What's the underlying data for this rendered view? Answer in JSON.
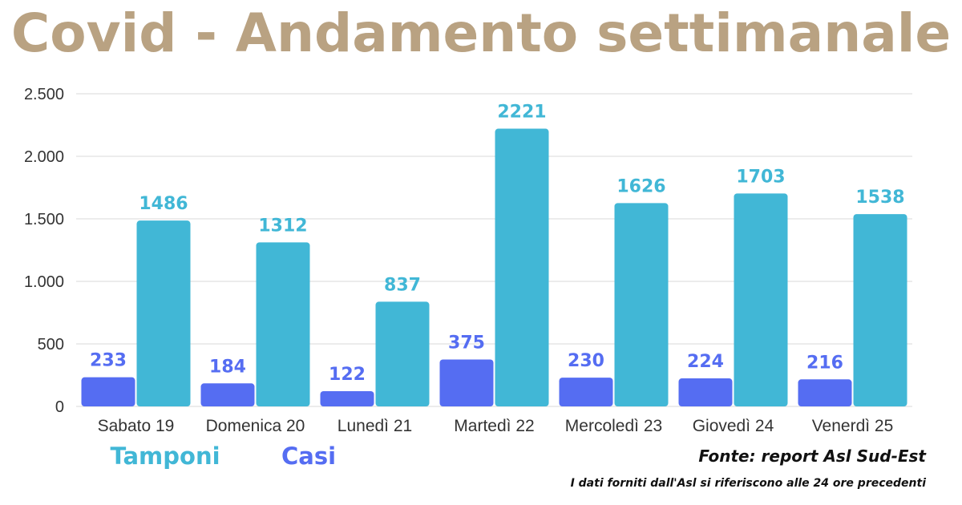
{
  "chart_data": {
    "type": "bar",
    "title": "Covid - Andamento settimanale",
    "categories": [
      "Sabato 19",
      "Domenica 20",
      "Lunedì 21",
      "Martedì 22",
      "Mercoledì 23",
      "Giovedì 24",
      "Venerdì 25"
    ],
    "series": [
      {
        "name": "Casi",
        "values": [
          233,
          184,
          122,
          375,
          230,
          224,
          216
        ],
        "color": "#556df2"
      },
      {
        "name": "Tamponi",
        "values": [
          1486,
          1312,
          837,
          2221,
          1626,
          1703,
          1538
        ],
        "color": "#41b7d6"
      }
    ],
    "ylim": [
      0,
      2500
    ],
    "yticks": [
      0,
      500,
      1000,
      1500,
      2000,
      2500
    ],
    "ytick_labels": [
      "0",
      "500",
      "1.000",
      "1.500",
      "2.000",
      "2.500"
    ],
    "grid": true,
    "legend_position": "bottom-left",
    "data_labels": true
  },
  "colors": {
    "title": "#b9a282",
    "grid": "#d9d9d9",
    "note": "#111111"
  },
  "source_note": "Fonte: report Asl Sud-Est",
  "disclaimer": "I dati forniti dall'Asl si riferiscono alle 24 ore precedenti"
}
